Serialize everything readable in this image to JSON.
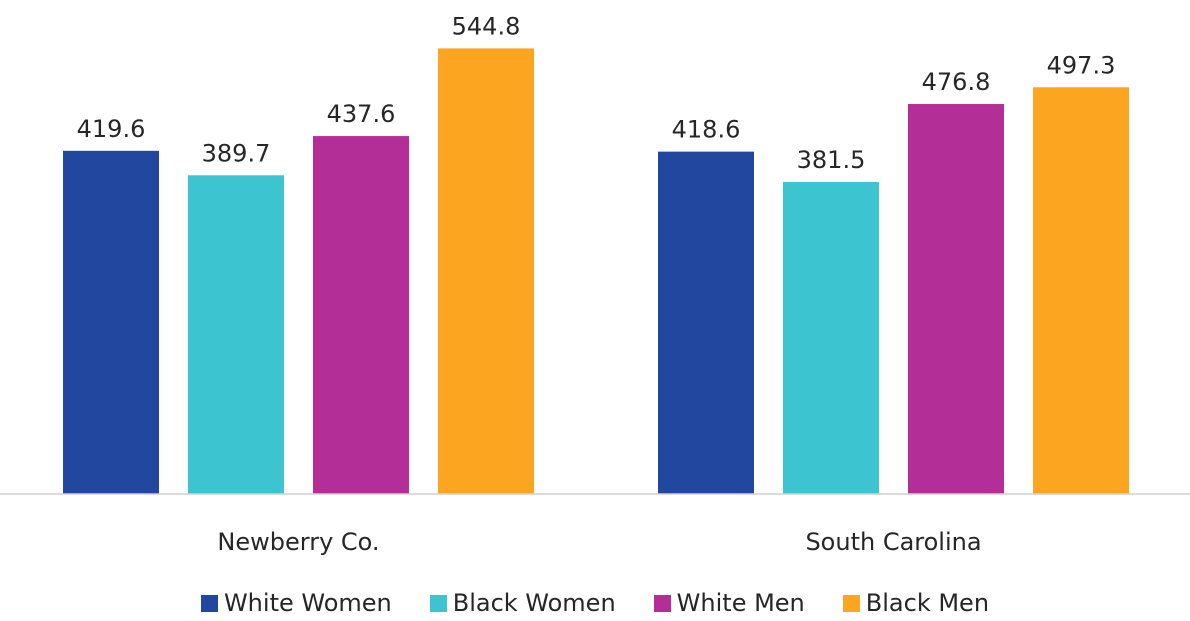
{
  "chart_data": {
    "type": "bar",
    "categories": [
      "Newberry Co.",
      "South Carolina"
    ],
    "series": [
      {
        "name": "White Women",
        "color": "#22479f",
        "values": [
          419.6,
          418.6
        ]
      },
      {
        "name": "Black Women",
        "color": "#3cc4d0",
        "values": [
          389.7,
          381.5
        ]
      },
      {
        "name": "White Men",
        "color": "#b32e97",
        "values": [
          437.6,
          476.8
        ]
      },
      {
        "name": "Black Men",
        "color": "#fba520",
        "values": [
          544.8,
          497.3
        ]
      }
    ],
    "ylim": [
      0,
      600
    ],
    "grid": false,
    "legend_position": "bottom",
    "data_labels": true
  }
}
